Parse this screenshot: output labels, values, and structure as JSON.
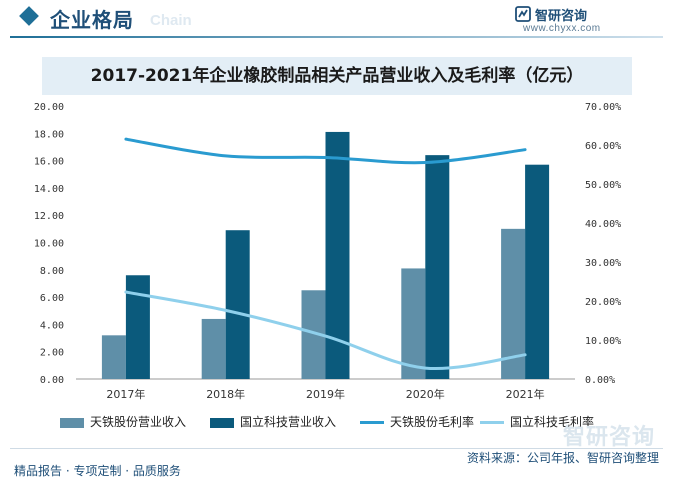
{
  "header": {
    "section_title": "企业格局",
    "ghost_text": "Chain",
    "brand_name": "智研咨询",
    "brand_url": "www.chyxx.com"
  },
  "colors": {
    "bar_tiantie": "#5f8fa8",
    "bar_guoli": "#0b5a7c",
    "line_tiantie": "#2a9bd0",
    "line_guoli": "#8fd0ec",
    "accent": "#1f4f78"
  },
  "chart_data": {
    "type": "bar",
    "title": "2017-2021年企业橡胶制品相关产品营业收入及毛利率（亿元）",
    "categories": [
      "2017年",
      "2018年",
      "2019年",
      "2020年",
      "2021年"
    ],
    "y_left_ticks": [
      "0.00",
      "2.00",
      "4.00",
      "6.00",
      "8.00",
      "10.00",
      "12.00",
      "14.00",
      "16.00",
      "18.00",
      "20.00"
    ],
    "y_right_ticks": [
      "0.00%",
      "10.00%",
      "20.00%",
      "30.00%",
      "40.00%",
      "50.00%",
      "60.00%",
      "70.00%"
    ],
    "ylim_left": [
      0,
      20
    ],
    "ylim_right": [
      0,
      70
    ],
    "series": [
      {
        "name": "天铁股份营业收入",
        "type": "bar",
        "axis": "left",
        "values": [
          3.2,
          4.4,
          6.5,
          8.1,
          11.0
        ]
      },
      {
        "name": "国立科技营业收入",
        "type": "bar",
        "axis": "left",
        "values": [
          7.6,
          10.9,
          18.1,
          16.4,
          15.7
        ]
      },
      {
        "name": "天铁股份毛利率",
        "type": "line",
        "axis": "right",
        "values": [
          61.5,
          57.2,
          56.8,
          55.5,
          58.8
        ]
      },
      {
        "name": "国立科技毛利率",
        "type": "line",
        "axis": "right",
        "values": [
          22.3,
          17.6,
          11.0,
          2.8,
          6.2
        ]
      }
    ],
    "legend_position": "bottom"
  },
  "footer": {
    "left": "精品报告 · 专项定制 · 品质服务",
    "right": "资料来源：公司年报、智研咨询整理"
  }
}
